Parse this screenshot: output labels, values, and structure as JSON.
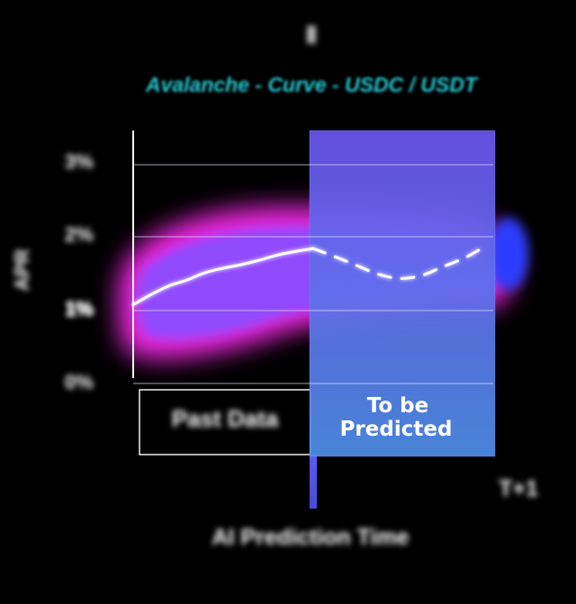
{
  "chart_data": {
    "type": "line",
    "title": "Ⅱ",
    "subtitle": "Avalanche - Curve - USDC / USDT",
    "ylabel": "APR",
    "xlabel": "AI Prediction Time",
    "x_end_label": "T+1",
    "y_ticks": [
      "3%",
      "2%",
      "1%",
      "0%"
    ],
    "mid_label": "1%",
    "ylim": [
      0,
      3
    ],
    "regions": [
      {
        "name": "historical",
        "label": "Past Data"
      },
      {
        "name": "predicted",
        "label_lines": [
          "To be",
          "Predicted"
        ]
      }
    ],
    "series": [
      {
        "region": "historical",
        "style": "solid",
        "points": [
          [
            0.0,
            1.08
          ],
          [
            0.05,
            1.22
          ],
          [
            0.1,
            1.34
          ],
          [
            0.15,
            1.42
          ],
          [
            0.2,
            1.52
          ],
          [
            0.25,
            1.58
          ],
          [
            0.3,
            1.63
          ],
          [
            0.35,
            1.69
          ],
          [
            0.4,
            1.76
          ],
          [
            0.45,
            1.81
          ],
          [
            0.5,
            1.85
          ]
        ]
      },
      {
        "region": "predicted",
        "style": "dashed",
        "points": [
          [
            0.5,
            1.85
          ],
          [
            0.56,
            1.74
          ],
          [
            0.62,
            1.62
          ],
          [
            0.68,
            1.5
          ],
          [
            0.74,
            1.44
          ],
          [
            0.8,
            1.48
          ],
          [
            0.86,
            1.6
          ],
          [
            0.92,
            1.72
          ],
          [
            0.96,
            1.83
          ]
        ]
      }
    ]
  }
}
